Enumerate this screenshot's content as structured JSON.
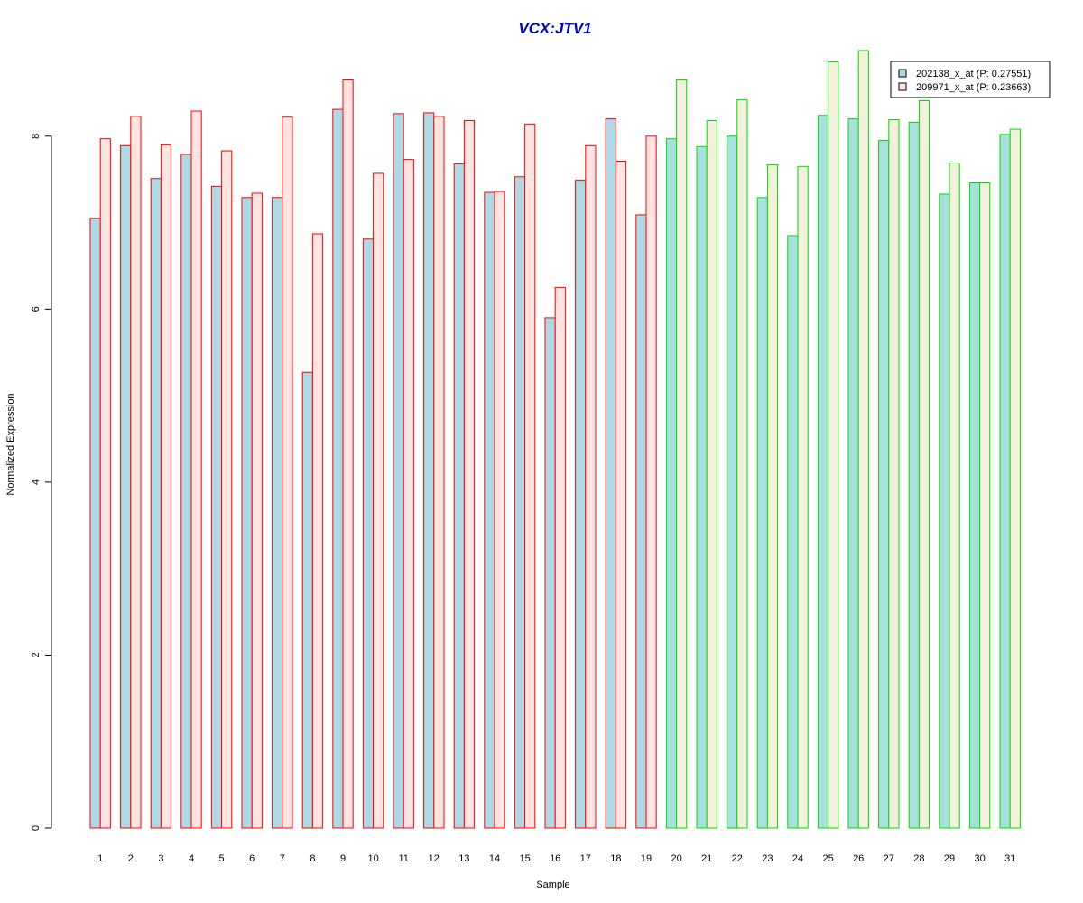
{
  "chart_data": {
    "type": "bar",
    "title": "VCX:JTV1",
    "xlabel": "Sample",
    "ylabel": "Normalized Expression",
    "ylim": [
      0,
      9
    ],
    "yticks": [
      0,
      2,
      4,
      6,
      8
    ],
    "grid": false,
    "legend_position": "top-right",
    "categories": [
      "1",
      "2",
      "3",
      "4",
      "5",
      "6",
      "7",
      "8",
      "9",
      "10",
      "11",
      "12",
      "13",
      "14",
      "15",
      "16",
      "17",
      "18",
      "19",
      "20",
      "21",
      "22",
      "23",
      "24",
      "25",
      "26",
      "27",
      "28",
      "29",
      "30",
      "31"
    ],
    "group_border_colors": [
      "red",
      "red",
      "red",
      "red",
      "red",
      "red",
      "red",
      "red",
      "red",
      "red",
      "red",
      "red",
      "red",
      "red",
      "red",
      "red",
      "red",
      "red",
      "red",
      "green",
      "green",
      "green",
      "green",
      "green",
      "green",
      "green",
      "green",
      "green",
      "green",
      "green",
      "green"
    ],
    "series": [
      {
        "name": "202138_x_at (P: 0.27551)",
        "values": [
          7.05,
          7.89,
          7.51,
          7.79,
          7.42,
          7.29,
          7.29,
          5.27,
          8.31,
          6.81,
          8.26,
          8.27,
          7.68,
          7.35,
          7.53,
          5.9,
          7.49,
          8.2,
          7.09,
          7.97,
          7.88,
          8.0,
          7.29,
          6.85,
          8.24,
          8.2,
          7.95,
          8.16,
          7.33,
          7.46,
          8.02
        ]
      },
      {
        "name": "209971_x_at (P: 0.23663)",
        "values": [
          7.97,
          8.23,
          7.9,
          8.29,
          7.83,
          7.34,
          8.22,
          6.87,
          8.65,
          7.57,
          7.73,
          8.23,
          8.18,
          7.36,
          8.14,
          6.25,
          7.89,
          7.71,
          8.0,
          8.65,
          8.18,
          8.42,
          7.67,
          7.65,
          8.86,
          8.99,
          8.19,
          8.41,
          7.69,
          7.46,
          8.08
        ]
      }
    ]
  },
  "colors": {
    "title": "#0000cc",
    "series1_fill": "#add8e6",
    "series2_fill_red_group": "#ffe4e1",
    "series2_fill_green_group": "#f5f0dc",
    "series1_fill_green_group": "#a8e0e0",
    "border_red": "#ff0000",
    "border_green": "#00dd00"
  }
}
